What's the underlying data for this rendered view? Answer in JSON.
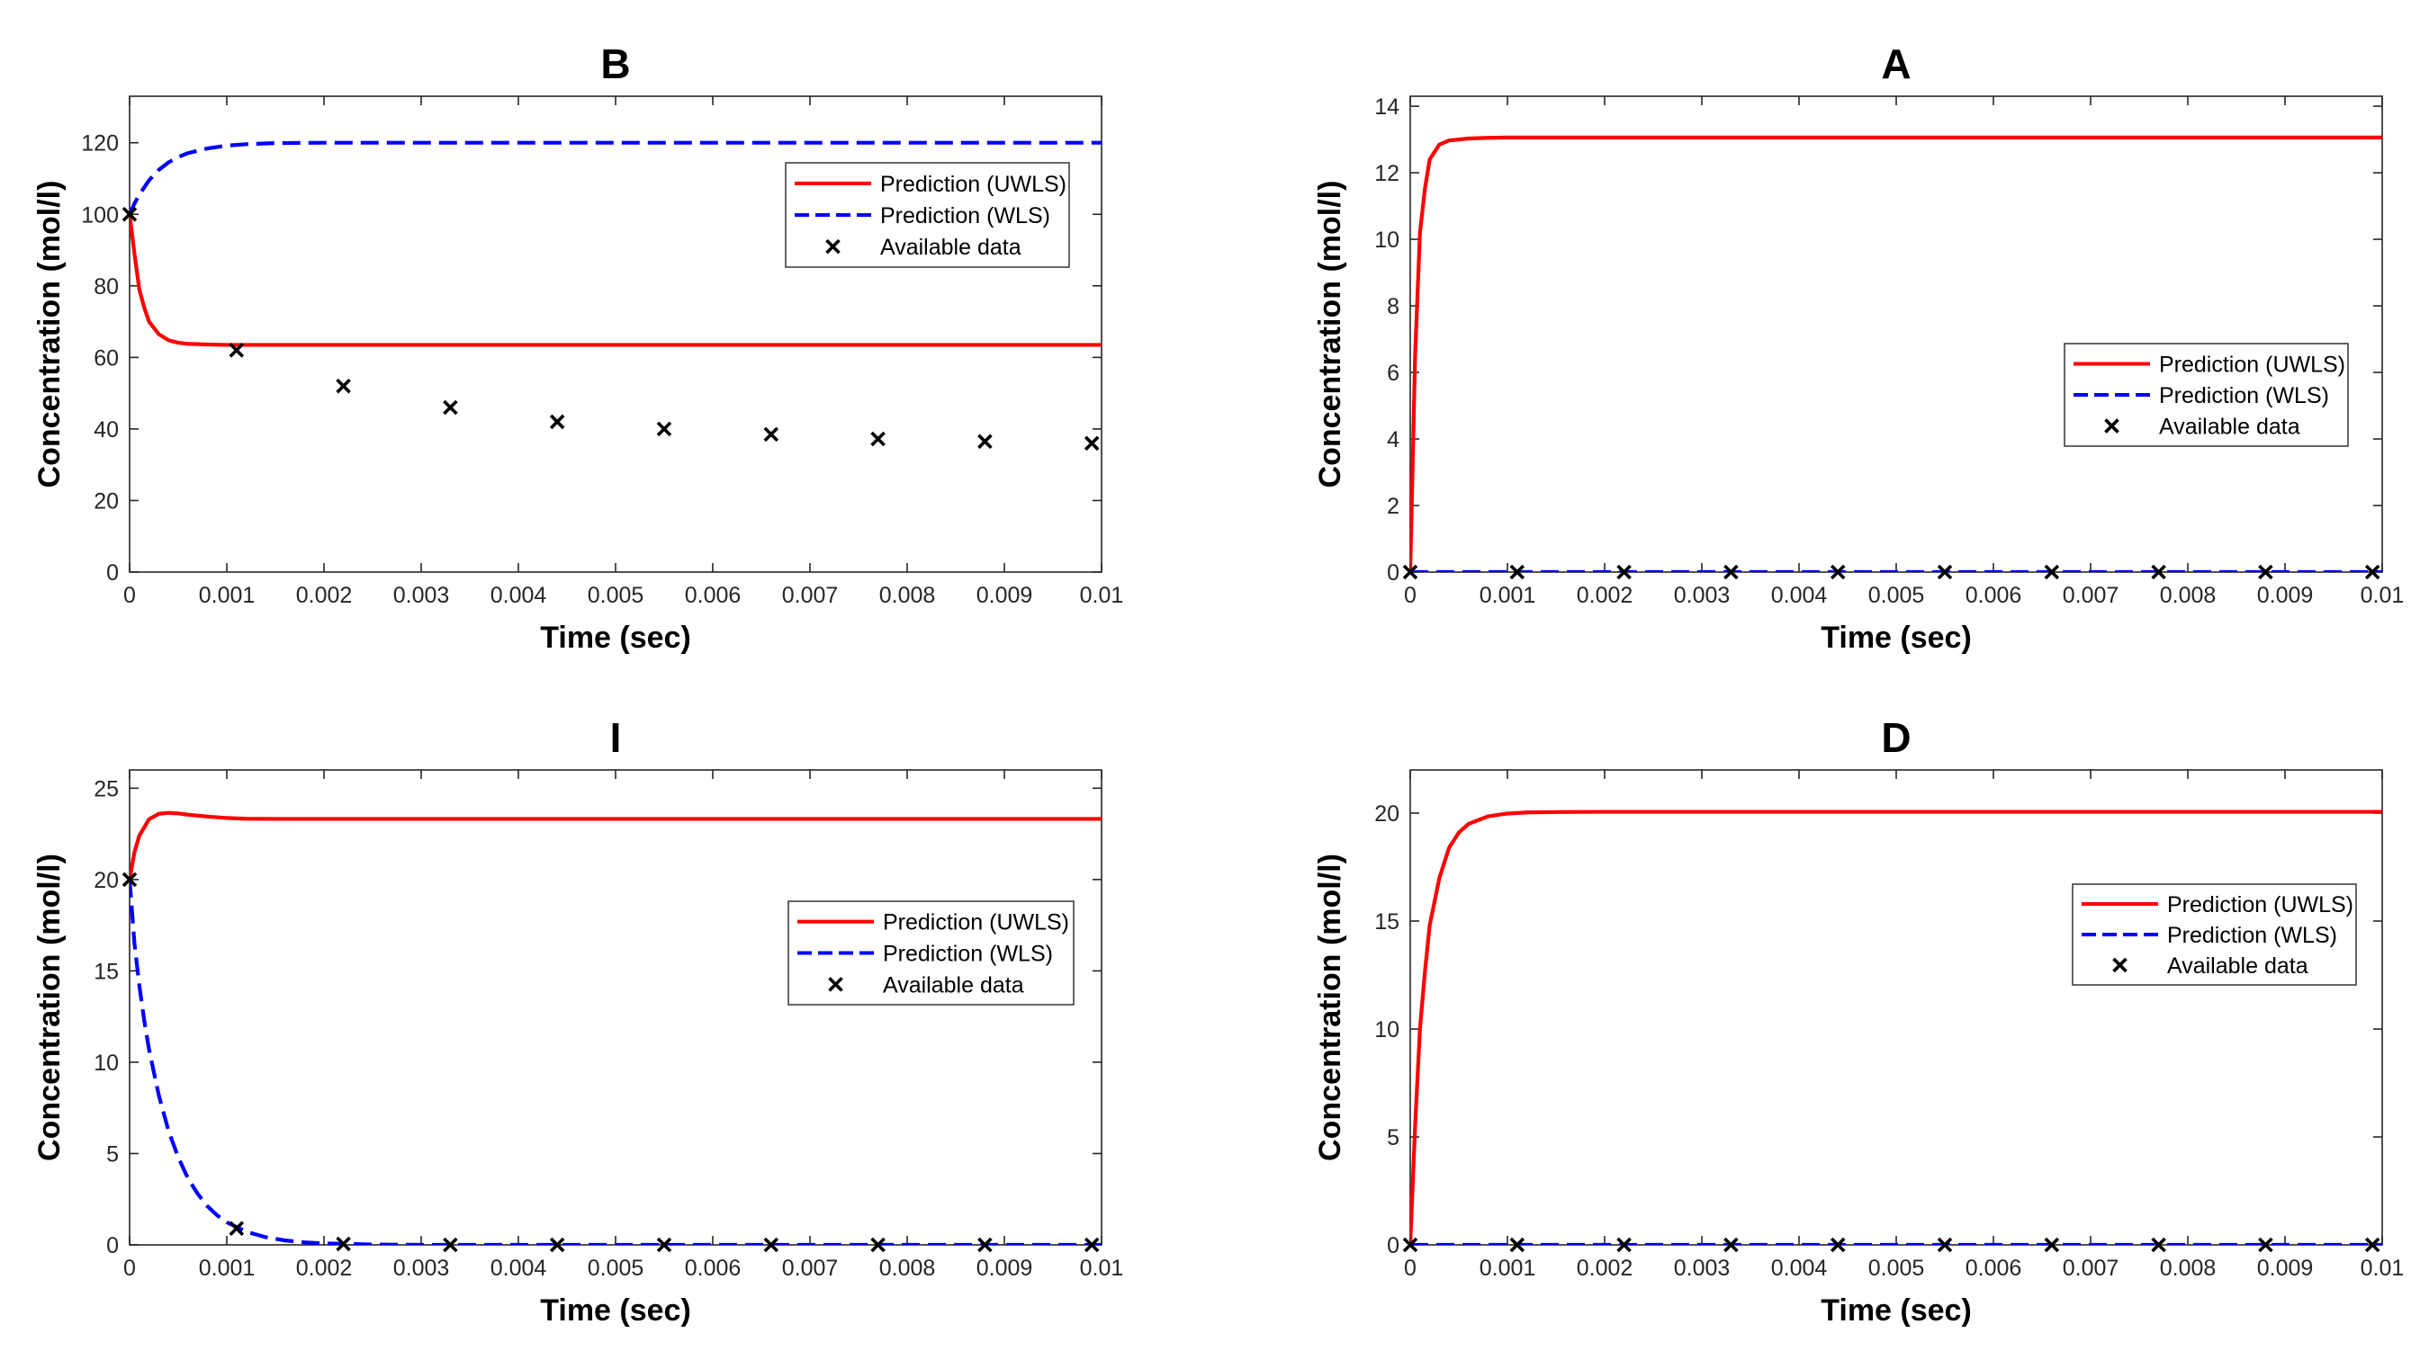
{
  "figure": {
    "legend_entries": [
      "Prediction (UWLS)",
      "Prediction (WLS)",
      "Available data"
    ],
    "colors": {
      "uwls": "#ff0000",
      "wls": "#0000ff",
      "data": "#000000",
      "axis": "#262626",
      "grid": "#d9d9d9"
    }
  },
  "chart_data": [
    {
      "id": "B",
      "type": "line",
      "title": "B",
      "xlabel": "Time (sec)",
      "ylabel": "Concentration (mol/l)",
      "xlim": [
        0,
        0.01
      ],
      "ylim": [
        0,
        133
      ],
      "xticks": [
        0,
        0.001,
        0.002,
        0.003,
        0.004,
        0.005,
        0.006,
        0.007,
        0.008,
        0.009,
        0.01
      ],
      "xtick_labels": [
        "0",
        "0.001",
        "0.002",
        "0.003",
        "0.004",
        "0.005",
        "0.006",
        "0.007",
        "0.008",
        "0.009",
        "0.01"
      ],
      "yticks": [
        0,
        20,
        40,
        60,
        80,
        100,
        120
      ],
      "ytick_labels": [
        "0",
        "20",
        "40",
        "60",
        "80",
        "100",
        "120"
      ],
      "legend": "right",
      "series": [
        {
          "name": "Prediction (UWLS)",
          "style": "solid",
          "x": [
            0,
            5e-05,
            0.0001,
            0.00015,
            0.0002,
            0.0003,
            0.0004,
            0.0005,
            0.0006,
            0.0008,
            0.001,
            0.0015,
            0.002,
            0.005,
            0.01
          ],
          "y": [
            100,
            89,
            79,
            74,
            70,
            66.5,
            64.8,
            64.1,
            63.8,
            63.6,
            63.5,
            63.5,
            63.5,
            63.5,
            63.5
          ]
        },
        {
          "name": "Prediction (WLS)",
          "style": "dashed",
          "x": [
            0,
            5e-05,
            0.0001,
            0.0002,
            0.0003,
            0.0004,
            0.0005,
            0.0006,
            0.0008,
            0.001,
            0.0012,
            0.0015,
            0.002,
            0.005,
            0.01
          ],
          "y": [
            100,
            103,
            105.5,
            109.5,
            112.4,
            114.5,
            116,
            117.1,
            118.4,
            119.2,
            119.6,
            119.9,
            120,
            120,
            120
          ]
        },
        {
          "name": "Available data",
          "style": "markers",
          "x": [
            0,
            0.0011,
            0.0022,
            0.0033,
            0.0044,
            0.0055,
            0.0066,
            0.0077,
            0.0088,
            0.0099
          ],
          "y": [
            100,
            62,
            52,
            46,
            42,
            40,
            38.5,
            37.2,
            36.5,
            36
          ]
        }
      ]
    },
    {
      "id": "A",
      "type": "line",
      "title": "A",
      "xlabel": "Time (sec)",
      "ylabel": "Concentration (mol/l)",
      "xlim": [
        0,
        0.01
      ],
      "ylim": [
        0,
        14.3
      ],
      "xticks": [
        0,
        0.001,
        0.002,
        0.003,
        0.004,
        0.005,
        0.006,
        0.007,
        0.008,
        0.009,
        0.01
      ],
      "xtick_labels": [
        "0",
        "0.001",
        "0.002",
        "0.003",
        "0.004",
        "0.005",
        "0.006",
        "0.007",
        "0.008",
        "0.009",
        "0.01"
      ],
      "yticks": [
        0,
        2,
        4,
        6,
        8,
        10,
        12,
        14
      ],
      "ytick_labels": [
        "0",
        "2",
        "4",
        "6",
        "8",
        "10",
        "12",
        "14"
      ],
      "legend": "right-middle",
      "series": [
        {
          "name": "Prediction (UWLS)",
          "style": "solid",
          "x": [
            0,
            5e-05,
            0.0001,
            0.00015,
            0.0002,
            0.0003,
            0.0004,
            0.0006,
            0.0008,
            0.001,
            0.002,
            0.01
          ],
          "y": [
            0,
            6.5,
            10.2,
            11.5,
            12.4,
            12.85,
            12.97,
            13.03,
            13.05,
            13.06,
            13.06,
            13.06
          ]
        },
        {
          "name": "Prediction (WLS)",
          "style": "dashed",
          "x": [
            0,
            0.01
          ],
          "y": [
            0,
            0
          ]
        },
        {
          "name": "Available data",
          "style": "markers",
          "x": [
            0,
            0.0011,
            0.0022,
            0.0033,
            0.0044,
            0.0055,
            0.0066,
            0.0077,
            0.0088,
            0.0099
          ],
          "y": [
            0,
            0,
            0,
            0,
            0,
            0,
            0,
            0,
            0,
            0
          ]
        }
      ]
    },
    {
      "id": "I",
      "type": "line",
      "title": "I",
      "xlabel": "Time (sec)",
      "ylabel": "Concentration (mol/l)",
      "xlim": [
        0,
        0.01
      ],
      "ylim": [
        0,
        26
      ],
      "xticks": [
        0,
        0.001,
        0.002,
        0.003,
        0.004,
        0.005,
        0.006,
        0.007,
        0.008,
        0.009,
        0.01
      ],
      "xtick_labels": [
        "0",
        "0.001",
        "0.002",
        "0.003",
        "0.004",
        "0.005",
        "0.006",
        "0.007",
        "0.008",
        "0.009",
        "0.01"
      ],
      "yticks": [
        0,
        5,
        10,
        15,
        20,
        25
      ],
      "ytick_labels": [
        "0",
        "5",
        "10",
        "15",
        "20",
        "25"
      ],
      "legend": "right",
      "series": [
        {
          "name": "Prediction (UWLS)",
          "style": "solid",
          "x": [
            0,
            5e-05,
            0.0001,
            0.0002,
            0.0003,
            0.0004,
            0.0005,
            0.0006,
            0.0008,
            0.001,
            0.0012,
            0.0015,
            0.002,
            0.01
          ],
          "y": [
            20,
            21.5,
            22.4,
            23.3,
            23.6,
            23.65,
            23.62,
            23.55,
            23.45,
            23.37,
            23.33,
            23.32,
            23.32,
            23.32
          ]
        },
        {
          "name": "Prediction (WLS)",
          "style": "dashed",
          "x": [
            0,
            5e-05,
            0.0001,
            0.00015,
            0.0002,
            0.0003,
            0.0004,
            0.0005,
            0.0006,
            0.0007,
            0.0008,
            0.0009,
            0.001,
            0.0012,
            0.0014,
            0.0016,
            0.0018,
            0.002,
            0.0025,
            0.003,
            0.01
          ],
          "y": [
            20,
            16.5,
            14.2,
            12.3,
            10.7,
            8.2,
            6.25,
            4.8,
            3.65,
            2.8,
            2.12,
            1.62,
            1.24,
            0.72,
            0.42,
            0.24,
            0.14,
            0.08,
            0.02,
            0,
            0
          ]
        },
        {
          "name": "Available data",
          "style": "markers",
          "x": [
            0,
            0.0011,
            0.0022,
            0.0033,
            0.0044,
            0.0055,
            0.0066,
            0.0077,
            0.0088,
            0.0099
          ],
          "y": [
            20,
            0.9,
            0.05,
            0,
            0,
            0,
            0,
            0,
            0,
            0
          ]
        }
      ]
    },
    {
      "id": "D",
      "type": "line",
      "title": "D",
      "xlabel": "Time (sec)",
      "ylabel": "Concentration (mol/l)",
      "xlim": [
        0,
        0.01
      ],
      "ylim": [
        0,
        22
      ],
      "xticks": [
        0,
        0.001,
        0.002,
        0.003,
        0.004,
        0.005,
        0.006,
        0.007,
        0.008,
        0.009,
        0.01
      ],
      "xtick_labels": [
        "0",
        "0.001",
        "0.002",
        "0.003",
        "0.004",
        "0.005",
        "0.006",
        "0.007",
        "0.008",
        "0.009",
        "0.01"
      ],
      "yticks": [
        0,
        5,
        10,
        15,
        20
      ],
      "ytick_labels": [
        "0",
        "5",
        "10",
        "15",
        "20"
      ],
      "legend": "right",
      "series": [
        {
          "name": "Prediction (UWLS)",
          "style": "solid",
          "x": [
            0,
            5e-05,
            0.0001,
            0.00015,
            0.0002,
            0.0003,
            0.0004,
            0.0005,
            0.0006,
            0.0008,
            0.001,
            0.0012,
            0.0015,
            0.002,
            0.01
          ],
          "y": [
            0,
            5.5,
            10,
            12.6,
            14.8,
            17,
            18.4,
            19.1,
            19.5,
            19.85,
            19.98,
            20.03,
            20.05,
            20.06,
            20.06
          ]
        },
        {
          "name": "Prediction (WLS)",
          "style": "dashed",
          "x": [
            0,
            0.01
          ],
          "y": [
            0,
            0
          ]
        },
        {
          "name": "Available data",
          "style": "markers",
          "x": [
            0,
            0.0011,
            0.0022,
            0.0033,
            0.0044,
            0.0055,
            0.0066,
            0.0077,
            0.0088,
            0.0099
          ],
          "y": [
            0,
            0,
            0,
            0,
            0,
            0,
            0,
            0,
            0,
            0
          ]
        }
      ]
    }
  ]
}
